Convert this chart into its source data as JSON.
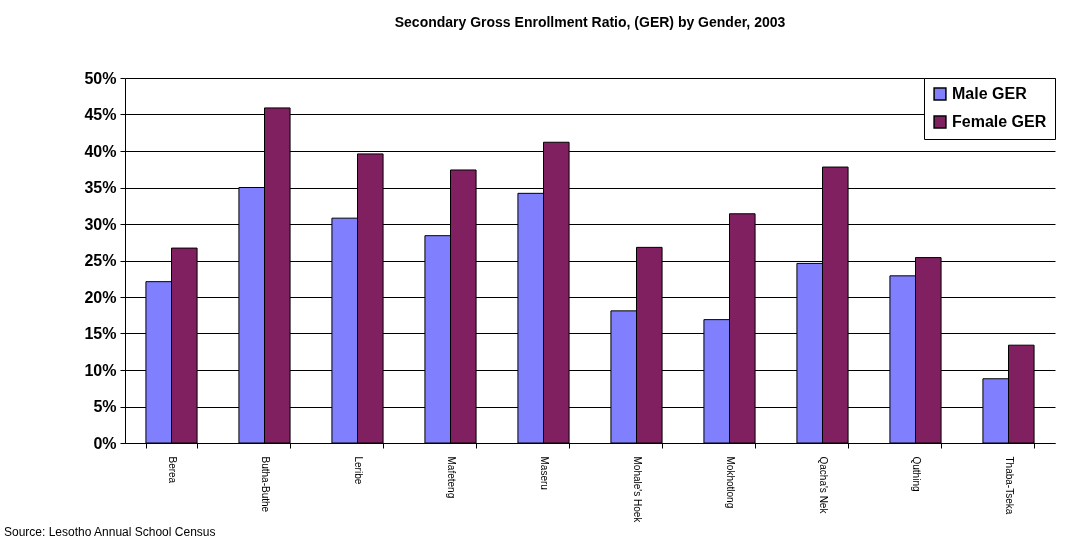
{
  "chart_data": {
    "type": "bar",
    "title": "Secondary Gross Enrollment Ratio, (GER) by Gender, 2003",
    "categories": [
      "Berea",
      "Butha-Buthe",
      "Leribe",
      "Mafeteng",
      "Maseru",
      "Mohale's Hoek",
      "Mokhotlong",
      "Qacha's Nek",
      "Quthing",
      "Thaba-Tseka"
    ],
    "series": [
      {
        "name": "Male GER",
        "color": "#8080ff",
        "values": [
          22.1,
          35.0,
          30.8,
          28.4,
          34.2,
          18.1,
          16.9,
          24.6,
          22.9,
          8.8
        ]
      },
      {
        "name": "Female GER",
        "color": "#802060",
        "values": [
          26.7,
          45.9,
          39.6,
          37.4,
          41.2,
          26.8,
          31.4,
          37.8,
          25.4,
          13.4
        ]
      }
    ],
    "ylim": [
      0,
      50
    ],
    "yticks": [
      {
        "value": 0,
        "label": "0%"
      },
      {
        "value": 5,
        "label": "5%"
      },
      {
        "value": 10,
        "label": "10%"
      },
      {
        "value": 15,
        "label": "15%"
      },
      {
        "value": 20,
        "label": "20%"
      },
      {
        "value": 25,
        "label": "25%"
      },
      {
        "value": 30,
        "label": "30%"
      },
      {
        "value": 35,
        "label": "35%"
      },
      {
        "value": 40,
        "label": "40%"
      },
      {
        "value": 45,
        "label": "45%"
      },
      {
        "value": 50,
        "label": "50%"
      }
    ],
    "grid": "y",
    "legend": "top right",
    "annotations": [
      "Source: Lesotho Annual School Census"
    ]
  }
}
